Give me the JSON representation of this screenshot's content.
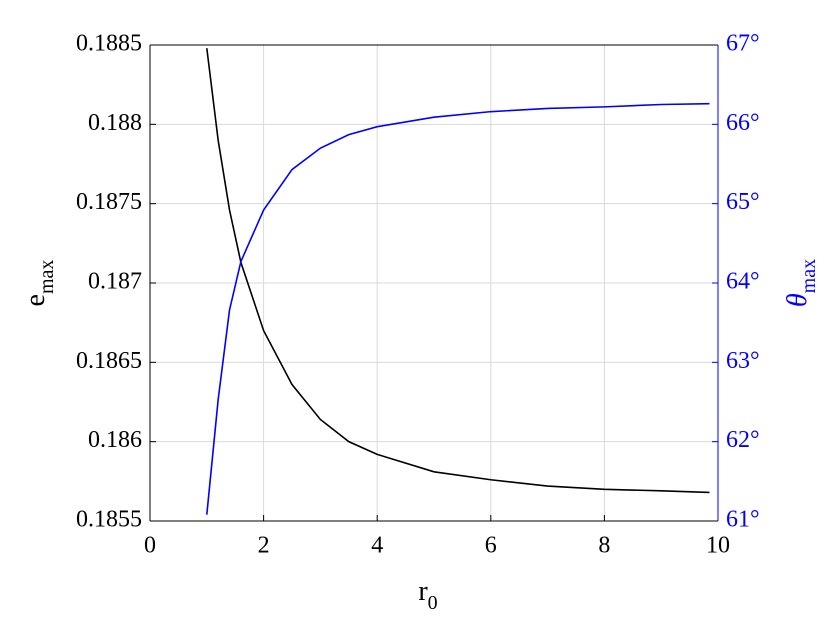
{
  "chart_data": {
    "type": "line",
    "xlabel": {
      "base": "r",
      "sub": "0"
    },
    "ylabel": {
      "base": "e",
      "sub": "max"
    },
    "y2label": {
      "base": "θ",
      "sub": "max"
    },
    "x": [
      1,
      1.2,
      1.4,
      1.6,
      2,
      2.5,
      3,
      3.5,
      4,
      5,
      6,
      7,
      8,
      9,
      9.85
    ],
    "series": [
      {
        "color": "#000000",
        "values": [
          0.18848,
          0.1879,
          0.18746,
          0.18713,
          0.1867,
          0.18636,
          0.18614,
          0.186,
          0.18592,
          0.18581,
          0.18576,
          0.18572,
          0.1857,
          0.18569,
          0.18568
        ]
      },
      {
        "color": "#0000ff",
        "axis": "y2",
        "values": [
          61.08,
          62.53,
          63.66,
          64.27,
          64.92,
          65.43,
          65.7,
          65.87,
          65.97,
          66.09,
          66.16,
          66.2,
          66.22,
          66.25,
          66.26
        ]
      }
    ],
    "xlim": [
      0,
      10
    ],
    "xticks": [
      0,
      2,
      4,
      6,
      8,
      10
    ],
    "ylim": [
      0.1855,
      0.1885
    ],
    "yticks": [
      0.1855,
      0.186,
      0.1865,
      0.187,
      0.1875,
      0.188,
      0.1885
    ],
    "y2lim": [
      61,
      67
    ],
    "y2ticks": [
      {
        "value": 61,
        "label": "61°"
      },
      {
        "value": 62,
        "label": "62°"
      },
      {
        "value": 63,
        "label": "63°"
      },
      {
        "value": 64,
        "label": "64°"
      },
      {
        "value": 65,
        "label": "65°"
      },
      {
        "value": 66,
        "label": "66°"
      },
      {
        "value": 67,
        "label": "67°"
      }
    ],
    "y2color": "#0000ff",
    "grid": true
  }
}
